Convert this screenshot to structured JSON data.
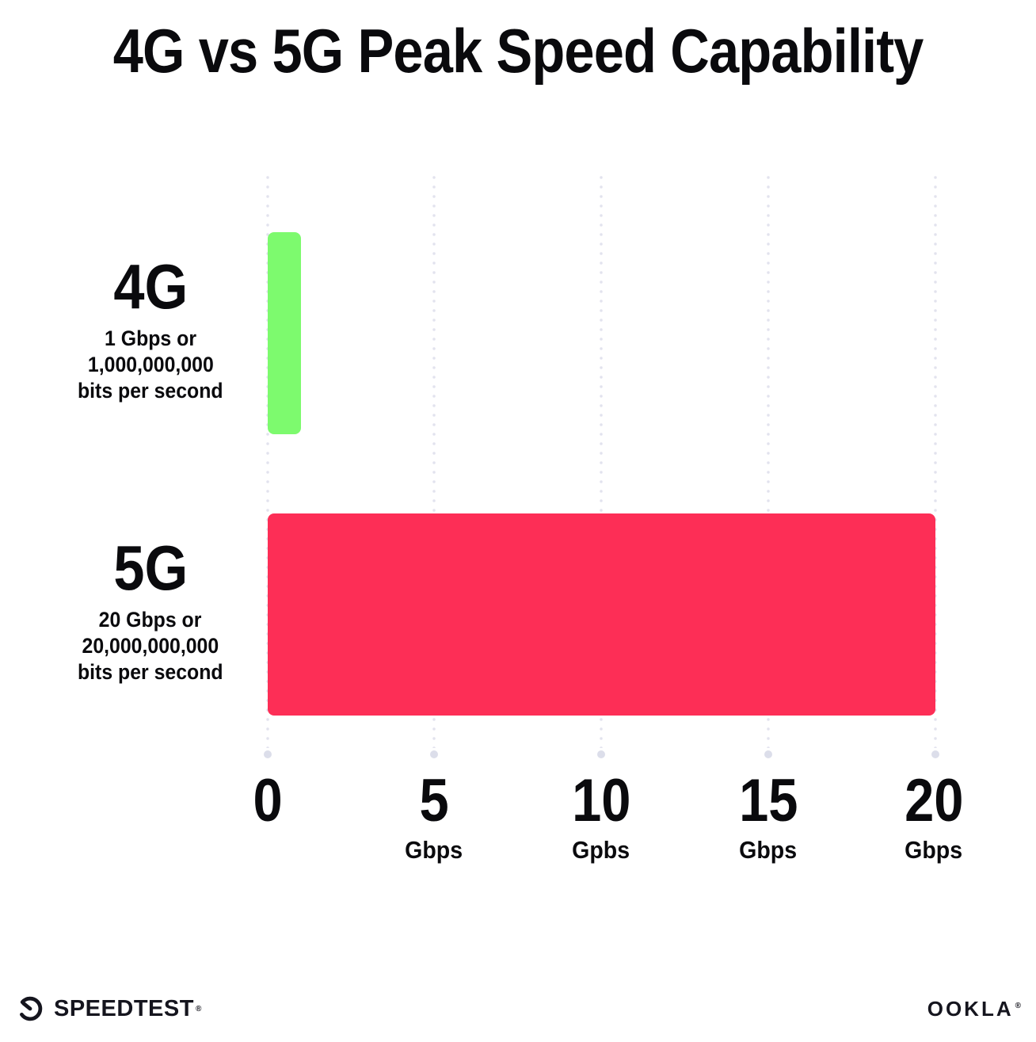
{
  "title": "4G vs 5G Peak Speed Capability",
  "chart_data": {
    "type": "bar",
    "orientation": "horizontal",
    "title": "4G vs 5G Peak Speed Capability",
    "categories": [
      "4G",
      "5G"
    ],
    "values": [
      1,
      20
    ],
    "value_unit": "Gbps",
    "xlim": [
      0,
      20
    ],
    "grid": "dotted vertical gridlines at 0, 5, 10, 15, 20 ending in a dot",
    "legend_position": "none",
    "rows": [
      {
        "label": "4G",
        "value": 1,
        "color": "#7dfa6e",
        "sublabel_lines": [
          "1 Gbps or",
          "1,000,000,000",
          "bits per second"
        ]
      },
      {
        "label": "5G",
        "value": 20,
        "color": "#fd2e56",
        "sublabel_lines": [
          "20 Gbps or",
          "20,000,000,000",
          "bits per second"
        ]
      }
    ],
    "x_ticks": [
      {
        "value": "0",
        "unit": ""
      },
      {
        "value": "5",
        "unit": "Gbps"
      },
      {
        "value": "10",
        "unit": "Gpbs"
      },
      {
        "value": "15",
        "unit": "Gbps"
      },
      {
        "value": "20",
        "unit": "Gbps"
      }
    ]
  },
  "footer": {
    "speedtest_label": "SPEEDTEST",
    "speedtest_mark": "®",
    "ookla_label": "OOKLA",
    "ookla_mark": "®",
    "logo_color": "#15151e"
  }
}
